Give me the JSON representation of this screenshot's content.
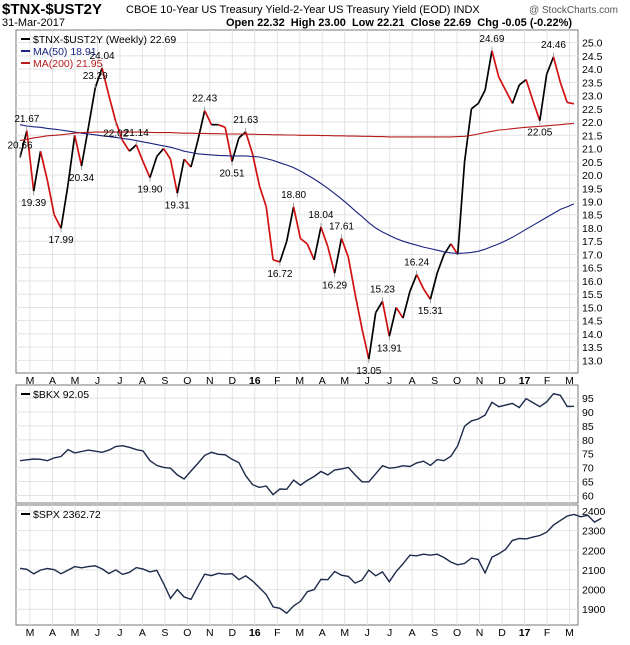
{
  "header": {
    "symbol": "$TNX-$UST2Y",
    "description": "CBOE 10-Year US Treasury Yield-2-Year US Treasury Yield (EOD)  INDX",
    "watermark": "@ StockCharts.com",
    "date": "31-Mar-2017",
    "ohlc_line": "Open 22.32  High 23.00  Low 22.21  Close 22.69  Chg -0.05 (-0.22%)"
  },
  "colors": {
    "price": "#000000",
    "down": "#d11010",
    "ma50": "#1a237e",
    "ma200": "#b71c1c",
    "grid": "#e2e2e2",
    "frame": "#777777"
  },
  "chart_data": [
    {
      "type": "line",
      "title": "$TNX-$UST2Y",
      "legend": [
        "$TNX-$UST2Y (Weekly) 22.69",
        "MA(50) 18.91",
        "MA(200) 21.95"
      ],
      "legend_position": "top-left",
      "y_ticks": [
        13.0,
        13.5,
        14.0,
        14.5,
        15.0,
        15.5,
        16.0,
        16.5,
        17.0,
        17.5,
        18.0,
        18.5,
        19.0,
        19.5,
        20.0,
        20.5,
        21.0,
        21.5,
        22.0,
        22.5,
        23.0,
        23.5,
        24.0,
        24.5,
        25.0
      ],
      "y_tick_labels": [
        "13.0",
        "13.5",
        "14.0",
        "14.5",
        "15.0",
        "15.5",
        "16.0",
        "16.5",
        "17.0",
        "17.5",
        "18.0",
        "18.5",
        "19.0",
        "19.5",
        "20.0",
        "20.5",
        "21.0",
        "21.5",
        "22.0",
        "22.5",
        "23.0",
        "23.5",
        "24.0",
        "24.5",
        "25.0"
      ],
      "ylim": [
        12.6,
        25.4
      ],
      "x_month_labels": [
        "M",
        "A",
        "M",
        "J",
        "J",
        "A",
        "S",
        "O",
        "N",
        "D",
        "16",
        "F",
        "M",
        "A",
        "M",
        "J",
        "J",
        "A",
        "S",
        "O",
        "N",
        "D",
        "17",
        "F",
        "M"
      ],
      "series": [
        {
          "name": "$TNX-$UST2Y (Weekly)",
          "values": [
            20.66,
            21.67,
            19.39,
            20.9,
            19.8,
            18.5,
            17.99,
            19.6,
            21.5,
            20.34,
            21.8,
            23.29,
            24.04,
            23.0,
            22.02,
            21.3,
            20.9,
            21.14,
            20.5,
            19.9,
            20.7,
            21.0,
            20.6,
            19.31,
            20.6,
            20.3,
            21.3,
            22.43,
            21.9,
            21.9,
            21.8,
            20.51,
            21.4,
            21.63,
            20.8,
            19.6,
            18.8,
            16.8,
            16.72,
            17.5,
            18.8,
            17.6,
            17.4,
            16.8,
            18.04,
            17.3,
            16.29,
            17.61,
            16.9,
            15.5,
            14.2,
            13.05,
            14.8,
            15.23,
            13.91,
            15.0,
            14.6,
            15.6,
            16.24,
            15.7,
            15.31,
            16.3,
            17.0,
            17.4,
            17.0,
            20.5,
            22.5,
            22.7,
            23.2,
            24.69,
            23.7,
            23.2,
            22.7,
            23.4,
            23.6,
            22.8,
            22.05,
            23.8,
            24.46,
            23.5,
            22.74,
            22.69
          ]
        },
        {
          "name": "MA(50)",
          "values": [
            21.9,
            21.85,
            21.82,
            21.8,
            21.76,
            21.73,
            21.7,
            21.66,
            21.62,
            21.58,
            21.55,
            21.52,
            21.48,
            21.45,
            21.42,
            21.38,
            21.35,
            21.3,
            21.25,
            21.2,
            21.15,
            21.1,
            21.05,
            20.98,
            20.9,
            20.85,
            20.8,
            20.78,
            20.76,
            20.74,
            20.73,
            20.72,
            20.72,
            20.72,
            20.7,
            20.68,
            20.62,
            20.55,
            20.46,
            20.38,
            20.28,
            20.15,
            20.0,
            19.85,
            19.68,
            19.5,
            19.3,
            19.1,
            18.88,
            18.65,
            18.43,
            18.2,
            18.0,
            17.85,
            17.72,
            17.6,
            17.5,
            17.42,
            17.35,
            17.28,
            17.22,
            17.16,
            17.1,
            17.06,
            17.04,
            17.05,
            17.08,
            17.12,
            17.2,
            17.3,
            17.4,
            17.52,
            17.65,
            17.8,
            17.95,
            18.1,
            18.25,
            18.4,
            18.55,
            18.7,
            18.8,
            18.91
          ]
        },
        {
          "name": "MA(200)",
          "values": [
            21.3,
            21.35,
            21.4,
            21.44,
            21.48,
            21.5,
            21.52,
            21.55,
            21.58,
            21.6,
            21.61,
            21.62,
            21.62,
            21.62,
            21.62,
            21.62,
            21.62,
            21.62,
            21.62,
            21.61,
            21.6,
            21.6,
            21.6,
            21.59,
            21.58,
            21.58,
            21.57,
            21.57,
            21.56,
            21.56,
            21.55,
            21.55,
            21.55,
            21.54,
            21.54,
            21.53,
            21.53,
            21.52,
            21.52,
            21.51,
            21.51,
            21.5,
            21.5,
            21.5,
            21.49,
            21.49,
            21.48,
            21.48,
            21.47,
            21.47,
            21.46,
            21.46,
            21.45,
            21.45,
            21.44,
            21.44,
            21.44,
            21.44,
            21.44,
            21.44,
            21.44,
            21.44,
            21.44,
            21.44,
            21.45,
            21.46,
            21.5,
            21.55,
            21.6,
            21.65,
            21.7,
            21.72,
            21.75,
            21.78,
            21.8,
            21.82,
            21.84,
            21.86,
            21.88,
            21.9,
            21.93,
            21.95
          ]
        }
      ],
      "annotations": [
        {
          "i": 0,
          "label": "20.66",
          "pos": "above"
        },
        {
          "i": 1,
          "label": "21.67",
          "pos": "above"
        },
        {
          "i": 2,
          "label": "19.39",
          "pos": "below"
        },
        {
          "i": 6,
          "label": "17.99",
          "pos": "below"
        },
        {
          "i": 9,
          "label": "20.34",
          "pos": "below"
        },
        {
          "i": 11,
          "label": "23.29",
          "pos": "above"
        },
        {
          "i": 12,
          "label": "24.04",
          "pos": "above"
        },
        {
          "i": 14,
          "label": "22.02",
          "pos": "below"
        },
        {
          "i": 17,
          "label": "21.14",
          "pos": "above"
        },
        {
          "i": 19,
          "label": "19.90",
          "pos": "below"
        },
        {
          "i": 23,
          "label": "19.31",
          "pos": "below"
        },
        {
          "i": 27,
          "label": "22.43",
          "pos": "above"
        },
        {
          "i": 31,
          "label": "20.51",
          "pos": "below"
        },
        {
          "i": 33,
          "label": "21.63",
          "pos": "above"
        },
        {
          "i": 38,
          "label": "16.72",
          "pos": "below"
        },
        {
          "i": 40,
          "label": "18.80",
          "pos": "above"
        },
        {
          "i": 44,
          "label": "18.04",
          "pos": "above"
        },
        {
          "i": 46,
          "label": "16.29",
          "pos": "below"
        },
        {
          "i": 47,
          "label": "17.61",
          "pos": "above"
        },
        {
          "i": 51,
          "label": "13.05",
          "pos": "below"
        },
        {
          "i": 53,
          "label": "15.23",
          "pos": "above"
        },
        {
          "i": 54,
          "label": "13.91",
          "pos": "below"
        },
        {
          "i": 58,
          "label": "16.24",
          "pos": "above"
        },
        {
          "i": 60,
          "label": "15.31",
          "pos": "below"
        },
        {
          "i": 69,
          "label": "24.69",
          "pos": "above"
        },
        {
          "i": 76,
          "label": "22.05",
          "pos": "below"
        },
        {
          "i": 78,
          "label": "24.46",
          "pos": "above"
        }
      ]
    },
    {
      "type": "line",
      "legend": [
        "$BKX 92.05"
      ],
      "legend_position": "top-left",
      "y_ticks": [
        60,
        65,
        70,
        75,
        80,
        85,
        90,
        95
      ],
      "y_tick_labels": [
        "60",
        "65",
        "70",
        "75",
        "80",
        "85",
        "90",
        "95"
      ],
      "ylim": [
        58,
        99
      ],
      "series": [
        {
          "name": "$BKX",
          "values": [
            72.5,
            72.8,
            73.1,
            73.0,
            72.5,
            73.5,
            74.0,
            76.5,
            75.3,
            75.8,
            76.3,
            75.9,
            75.5,
            76.3,
            77.6,
            77.9,
            77.3,
            76.5,
            76.0,
            72.5,
            70.8,
            70.1,
            69.8,
            67.4,
            65.9,
            68.8,
            71.5,
            74.4,
            75.5,
            74.8,
            74.6,
            73.0,
            71.8,
            67.1,
            63.9,
            62.9,
            63.4,
            60.3,
            62.3,
            62.2,
            65.5,
            63.7,
            65.4,
            66.8,
            68.6,
            67.4,
            69.1,
            69.5,
            70.1,
            67.4,
            64.9,
            64.9,
            67.8,
            70.7,
            69.8,
            70.1,
            70.7,
            70.4,
            71.7,
            72.3,
            70.8,
            72.9,
            72.5,
            74.1,
            77.9,
            84.9,
            86.8,
            87.5,
            88.9,
            93.5,
            91.9,
            92.5,
            93.1,
            91.6,
            94.8,
            93.4,
            91.9,
            93.6,
            96.6,
            96.0,
            92.0,
            92.05
          ]
        }
      ]
    },
    {
      "type": "line",
      "legend": [
        "$SPX 2362.72"
      ],
      "legend_position": "top-left",
      "x_month_labels": [
        "M",
        "A",
        "M",
        "J",
        "J",
        "A",
        "S",
        "O",
        "N",
        "D",
        "16",
        "F",
        "M",
        "A",
        "M",
        "J",
        "J",
        "A",
        "S",
        "O",
        "N",
        "D",
        "17",
        "F",
        "M"
      ],
      "y_ticks": [
        1900,
        2000,
        2100,
        2200,
        2300,
        2400
      ],
      "y_tick_labels": [
        "1900",
        "2000",
        "2100",
        "2200",
        "2300",
        "2400"
      ],
      "ylim": [
        1830,
        2420
      ],
      "series": [
        {
          "name": "$SPX",
          "values": [
            2108,
            2103,
            2080,
            2099,
            2107,
            2101,
            2081,
            2098,
            2117,
            2111,
            2117,
            2121,
            2105,
            2082,
            2100,
            2077,
            2088,
            2112,
            2104,
            2090,
            2098,
            2031,
            1955,
            2000,
            1963,
            1950,
            2015,
            2078,
            2071,
            2083,
            2078,
            2081,
            2050,
            2070,
            2044,
            2010,
            1975,
            1912,
            1905,
            1880,
            1917,
            1940,
            1989,
            2000,
            2052,
            2050,
            2092,
            2073,
            2067,
            2033,
            2048,
            2099,
            2070,
            2090,
            2040,
            2092,
            2131,
            2175,
            2172,
            2180,
            2175,
            2180,
            2163,
            2140,
            2126,
            2133,
            2160,
            2153,
            2085,
            2164,
            2182,
            2205,
            2250,
            2260,
            2258,
            2267,
            2275,
            2292,
            2328,
            2351,
            2374,
            2382,
            2370,
            2378,
            2343,
            2362.72
          ]
        }
      ]
    }
  ]
}
